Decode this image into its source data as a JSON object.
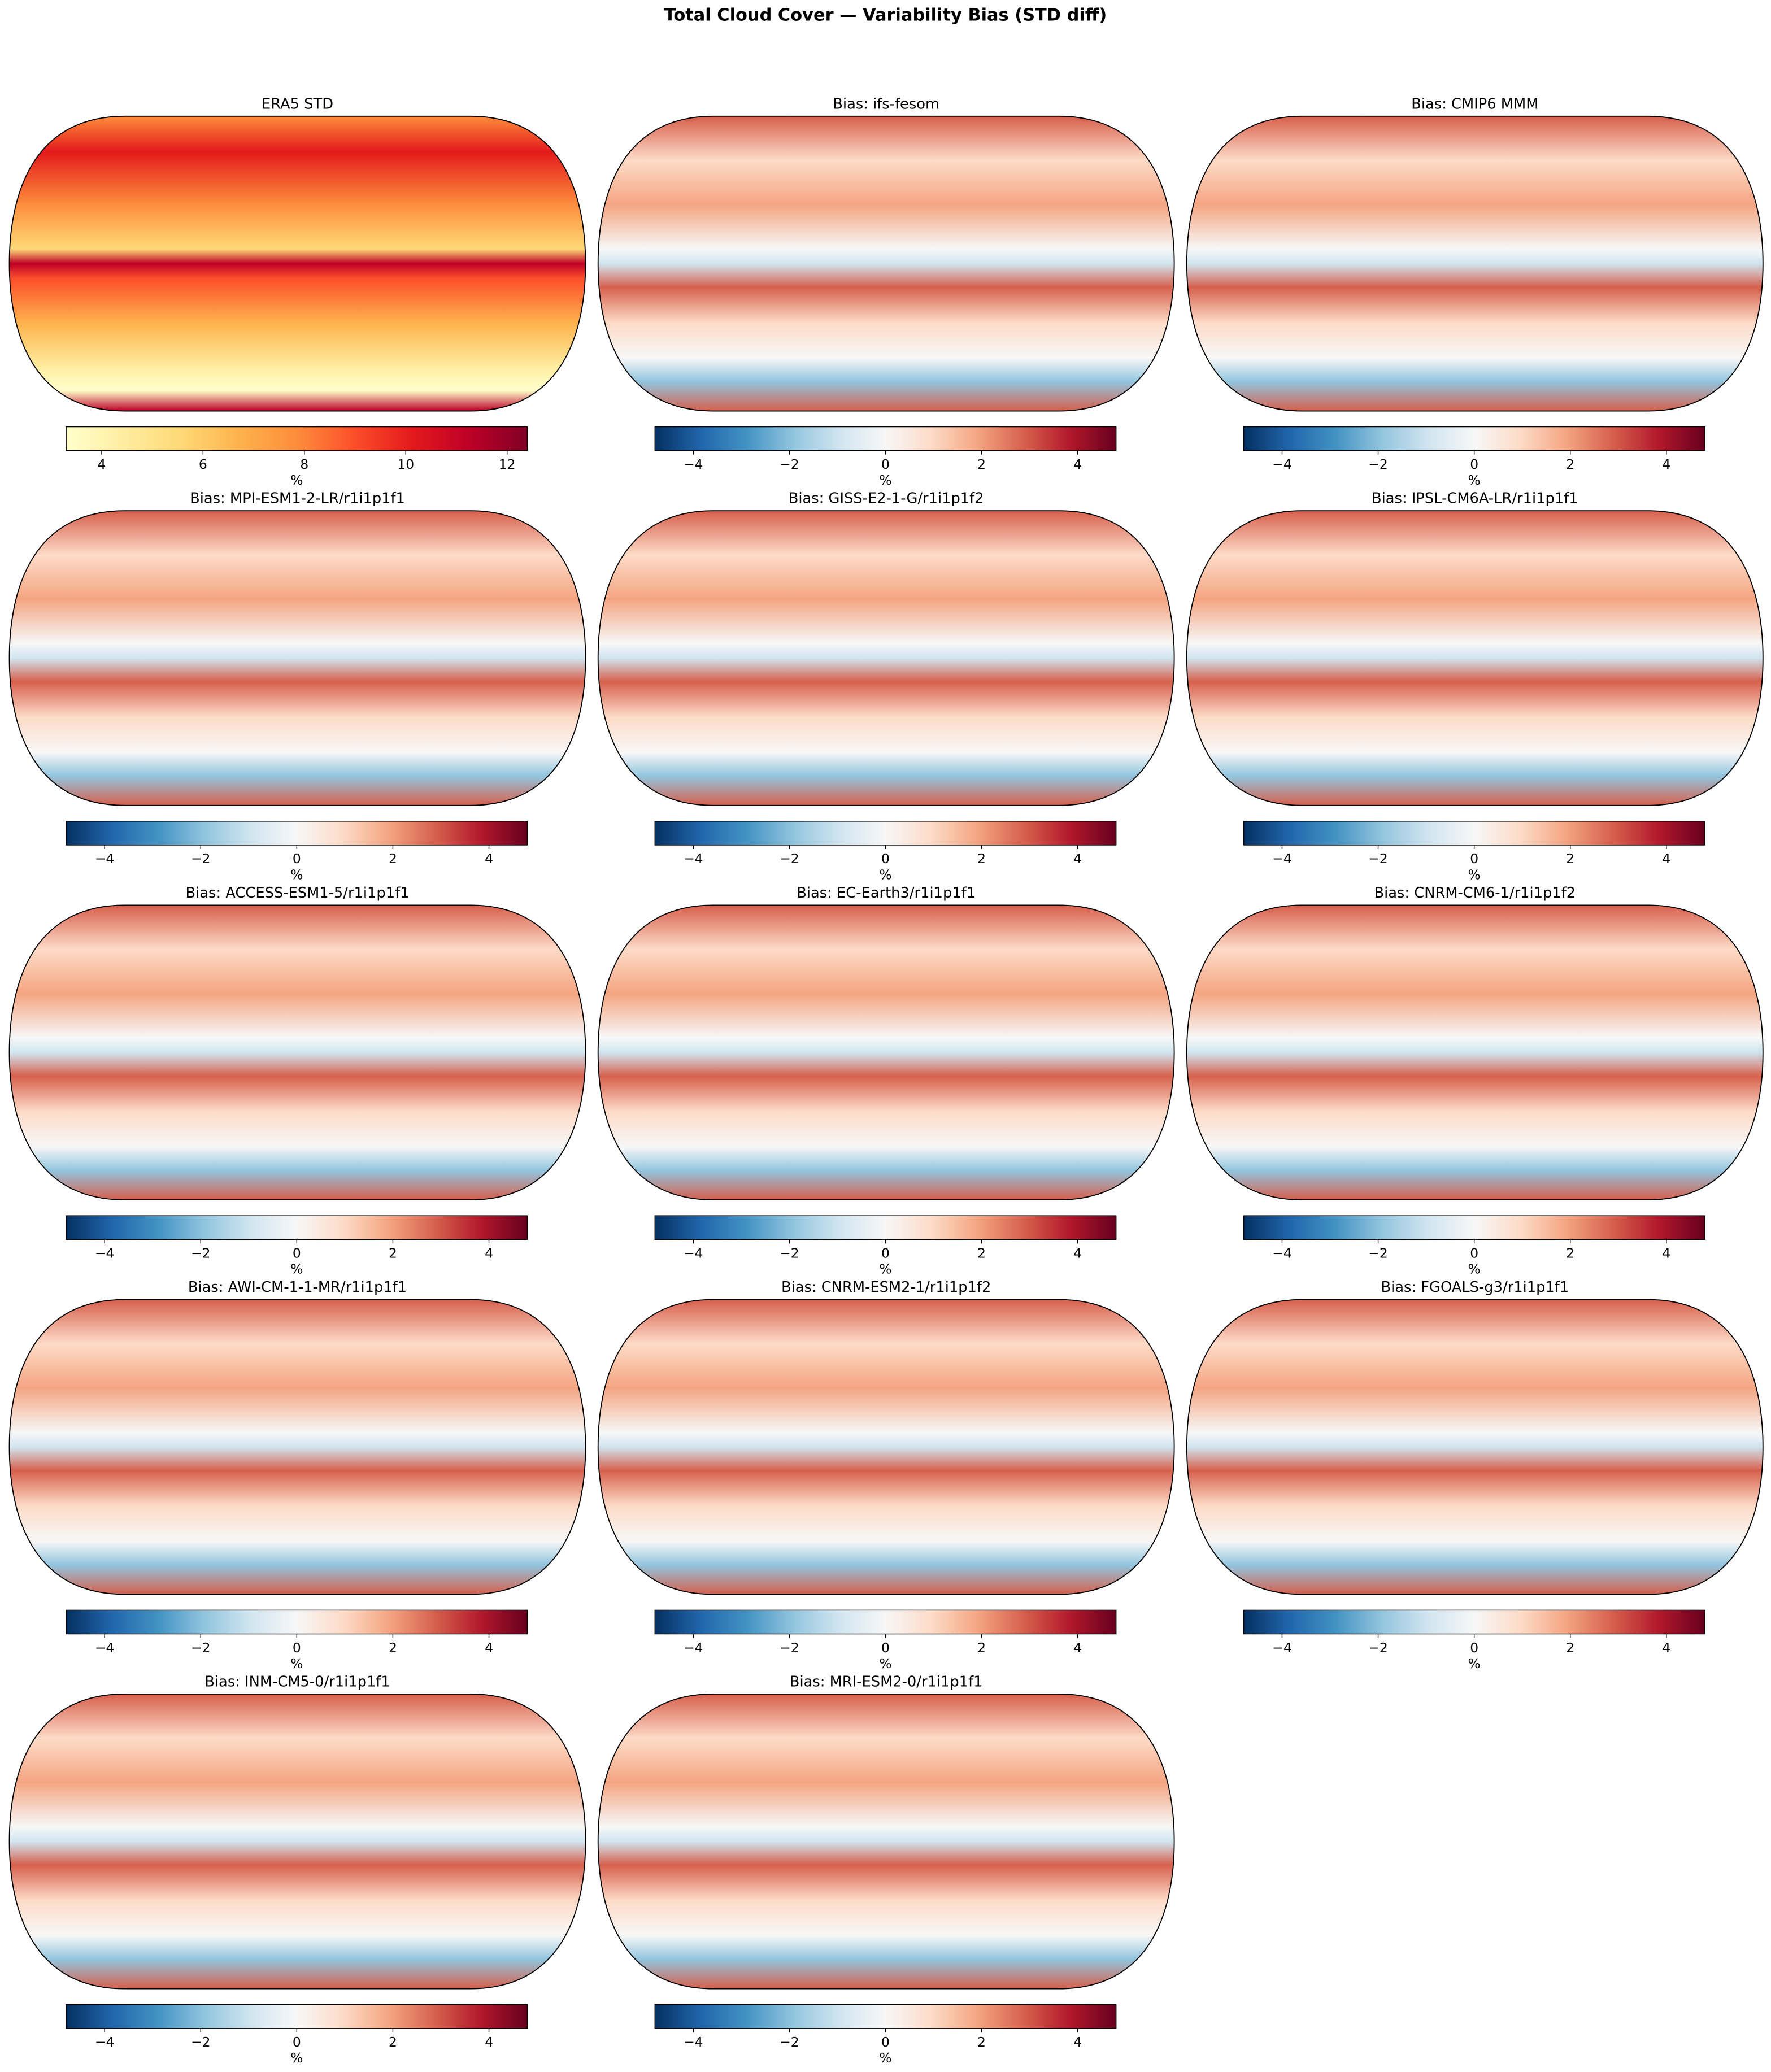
{
  "title": "Total Cloud Cover — Variability Bias (STD diff)",
  "chart_data": [
    {
      "type": "map",
      "title": "ERA5 STD",
      "colormap": "YlOrRd",
      "clabel": "%",
      "clim": [
        3.3,
        12.4
      ],
      "cticks": [
        4,
        6,
        8,
        10,
        12
      ]
    },
    {
      "type": "map",
      "title": "Bias: ifs-fesom",
      "colormap": "RdBu_r",
      "clabel": "%",
      "clim": [
        -4.8,
        4.8
      ],
      "cticks": [
        {
          "value": -4,
          "label": "−4"
        },
        {
          "value": -2,
          "label": "−2"
        },
        0,
        2,
        4
      ]
    },
    {
      "type": "map",
      "title": "Bias: CMIP6 MMM",
      "colormap": "RdBu_r",
      "clabel": "%",
      "clim": [
        -4.8,
        4.8
      ],
      "cticks": [
        {
          "value": -4,
          "label": "−4"
        },
        {
          "value": -2,
          "label": "−2"
        },
        0,
        2,
        4
      ]
    },
    {
      "type": "map",
      "title": "Bias: MPI-ESM1-2-LR/r1i1p1f1",
      "colormap": "RdBu_r",
      "clabel": "%",
      "clim": [
        -4.8,
        4.8
      ],
      "cticks": [
        {
          "value": -4,
          "label": "−4"
        },
        {
          "value": -2,
          "label": "−2"
        },
        0,
        2,
        4
      ]
    },
    {
      "type": "map",
      "title": "Bias: GISS-E2-1-G/r1i1p1f2",
      "colormap": "RdBu_r",
      "clabel": "%",
      "clim": [
        -4.8,
        4.8
      ],
      "cticks": [
        {
          "value": -4,
          "label": "−4"
        },
        {
          "value": -2,
          "label": "−2"
        },
        0,
        2,
        4
      ]
    },
    {
      "type": "map",
      "title": "Bias: IPSL-CM6A-LR/r1i1p1f1",
      "colormap": "RdBu_r",
      "clabel": "%",
      "clim": [
        -4.8,
        4.8
      ],
      "cticks": [
        {
          "value": -4,
          "label": "−4"
        },
        {
          "value": -2,
          "label": "−2"
        },
        0,
        2,
        4
      ]
    },
    {
      "type": "map",
      "title": "Bias: ACCESS-ESM1-5/r1i1p1f1",
      "colormap": "RdBu_r",
      "clabel": "%",
      "clim": [
        -4.8,
        4.8
      ],
      "cticks": [
        {
          "value": -4,
          "label": "−4"
        },
        {
          "value": -2,
          "label": "−2"
        },
        0,
        2,
        4
      ]
    },
    {
      "type": "map",
      "title": "Bias: EC-Earth3/r1i1p1f1",
      "colormap": "RdBu_r",
      "clabel": "%",
      "clim": [
        -4.8,
        4.8
      ],
      "cticks": [
        {
          "value": -4,
          "label": "−4"
        },
        {
          "value": -2,
          "label": "−2"
        },
        0,
        2,
        4
      ]
    },
    {
      "type": "map",
      "title": "Bias: CNRM-CM6-1/r1i1p1f2",
      "colormap": "RdBu_r",
      "clabel": "%",
      "clim": [
        -4.8,
        4.8
      ],
      "cticks": [
        {
          "value": -4,
          "label": "−4"
        },
        {
          "value": -2,
          "label": "−2"
        },
        0,
        2,
        4
      ]
    },
    {
      "type": "map",
      "title": "Bias: AWI-CM-1-1-MR/r1i1p1f1",
      "colormap": "RdBu_r",
      "clabel": "%",
      "clim": [
        -4.8,
        4.8
      ],
      "cticks": [
        {
          "value": -4,
          "label": "−4"
        },
        {
          "value": -2,
          "label": "−2"
        },
        0,
        2,
        4
      ]
    },
    {
      "type": "map",
      "title": "Bias: CNRM-ESM2-1/r1i1p1f2",
      "colormap": "RdBu_r",
      "clabel": "%",
      "clim": [
        -4.8,
        4.8
      ],
      "cticks": [
        {
          "value": -4,
          "label": "−4"
        },
        {
          "value": -2,
          "label": "−2"
        },
        0,
        2,
        4
      ]
    },
    {
      "type": "map",
      "title": "Bias: FGOALS-g3/r1i1p1f1",
      "colormap": "RdBu_r",
      "clabel": "%",
      "clim": [
        -4.8,
        4.8
      ],
      "cticks": [
        {
          "value": -4,
          "label": "−4"
        },
        {
          "value": -2,
          "label": "−2"
        },
        0,
        2,
        4
      ]
    },
    {
      "type": "map",
      "title": "Bias: INM-CM5-0/r1i1p1f1",
      "colormap": "RdBu_r",
      "clabel": "%",
      "clim": [
        -4.8,
        4.8
      ],
      "cticks": [
        {
          "value": -4,
          "label": "−4"
        },
        {
          "value": -2,
          "label": "−2"
        },
        0,
        2,
        4
      ]
    },
    {
      "type": "map",
      "title": "Bias: MRI-ESM2-0/r1i1p1f1",
      "colormap": "RdBu_r",
      "clabel": "%",
      "clim": [
        -4.8,
        4.8
      ],
      "cticks": [
        {
          "value": -4,
          "label": "−4"
        },
        {
          "value": -2,
          "label": "−2"
        },
        0,
        2,
        4
      ]
    }
  ]
}
